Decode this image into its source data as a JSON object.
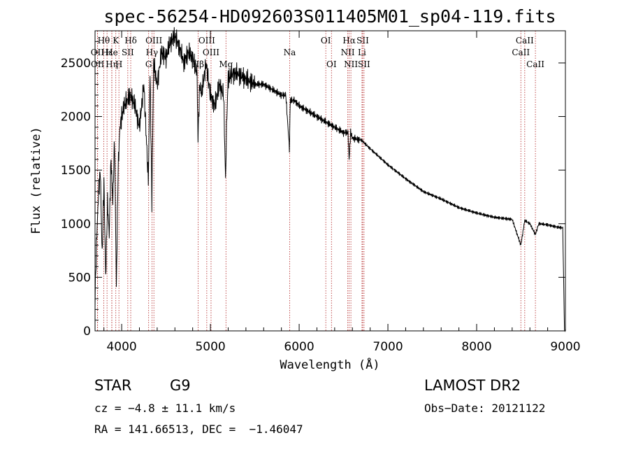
{
  "chart_data": {
    "type": "line",
    "title": "spec-56254-HD092603S011405M01_sp04-119.fits",
    "xlabel": "Wavelength (Å)",
    "ylabel": "Flux (relative)",
    "xlim": [
      3700,
      9000
    ],
    "ylim": [
      0,
      2800
    ],
    "xticks": [
      4000,
      5000,
      6000,
      7000,
      8000,
      9000
    ],
    "yticks": [
      0,
      500,
      1000,
      1500,
      2000,
      2500
    ],
    "grid": false,
    "series": [
      {
        "x": [
          3700,
          3720,
          3740,
          3760,
          3780,
          3800,
          3820,
          3840,
          3860,
          3880,
          3900,
          3920,
          3940,
          3960,
          3980,
          4000,
          4030,
          4060,
          4100,
          4150,
          4200,
          4250,
          4300,
          4320,
          4340,
          4360,
          4400,
          4450,
          4500,
          4550,
          4600,
          4650,
          4700,
          4750,
          4800,
          4850,
          4860,
          4880,
          4900,
          4950,
          5000,
          5050,
          5100,
          5150,
          5170,
          5185,
          5200,
          5250,
          5300,
          5400,
          5500,
          5600,
          5700,
          5800,
          5850,
          5890,
          5900,
          5950,
          6000,
          6100,
          6200,
          6300,
          6400,
          6500,
          6550,
          6563,
          6580,
          6600,
          6700,
          6800,
          7000,
          7200,
          7400,
          7600,
          7800,
          8000,
          8200,
          8400,
          8498,
          8542,
          8600,
          8662,
          8700,
          8800,
          8900,
          8970,
          8990,
          9000
        ],
        "y": [
          300,
          900,
          1300,
          1500,
          700,
          1400,
          500,
          1200,
          900,
          1600,
          1200,
          1800,
          400,
          1500,
          1900,
          2000,
          2100,
          2150,
          2200,
          2100,
          1900,
          2300,
          1400,
          2400,
          1200,
          2500,
          2300,
          2600,
          2550,
          2700,
          2750,
          2650,
          2500,
          2600,
          2550,
          2400,
          1800,
          2300,
          2200,
          2500,
          2200,
          2100,
          2300,
          2200,
          1400,
          2000,
          2350,
          2400,
          2400,
          2350,
          2300,
          2300,
          2250,
          2200,
          2200,
          1700,
          2150,
          2150,
          2100,
          2050,
          2000,
          1950,
          1900,
          1850,
          1850,
          1600,
          1850,
          1800,
          1780,
          1700,
          1550,
          1420,
          1300,
          1230,
          1150,
          1100,
          1060,
          1040,
          800,
          1030,
          1000,
          900,
          1000,
          990,
          970,
          960,
          0,
          0
        ]
      }
    ],
    "line_markers": [
      {
        "label": "Hθ",
        "x": 3798,
        "row": 1
      },
      {
        "label": "OII",
        "x": 3727,
        "row": 2
      },
      {
        "label": "OII",
        "x": 3729,
        "row": 3
      },
      {
        "label": "Hε",
        "x": 3835,
        "row": 2
      },
      {
        "label": "Hη",
        "x": 3889,
        "row": 3
      },
      {
        "label": "K",
        "x": 3934,
        "row": 1
      },
      {
        "label": "H",
        "x": 3969,
        "row": 3
      },
      {
        "label": "He",
        "x": 3889,
        "row": 2
      },
      {
        "label": "SII",
        "x": 4069,
        "row": 2
      },
      {
        "label": "Hδ",
        "x": 4102,
        "row": 1
      },
      {
        "label": "OIII",
        "x": 4363,
        "row": 1
      },
      {
        "label": "Hγ",
        "x": 4341,
        "row": 2
      },
      {
        "label": "G",
        "x": 4304,
        "row": 3
      },
      {
        "label": "OIII",
        "x": 4959,
        "row": 1
      },
      {
        "label": "OIII",
        "x": 5007,
        "row": 2
      },
      {
        "label": "Hβ",
        "x": 4861,
        "row": 3
      },
      {
        "label": "Mg",
        "x": 5175,
        "row": 3
      },
      {
        "label": "Na",
        "x": 5893,
        "row": 2
      },
      {
        "label": "OI",
        "x": 6300,
        "row": 1
      },
      {
        "label": "OI",
        "x": 6364,
        "row": 3
      },
      {
        "label": "Hα",
        "x": 6563,
        "row": 1
      },
      {
        "label": "NII",
        "x": 6548,
        "row": 2
      },
      {
        "label": "NII",
        "x": 6583,
        "row": 3
      },
      {
        "label": "SII",
        "x": 6716,
        "row": 1
      },
      {
        "label": "Li",
        "x": 6708,
        "row": 2
      },
      {
        "label": "SII",
        "x": 6731,
        "row": 3
      },
      {
        "label": "CaII",
        "x": 8542,
        "row": 1
      },
      {
        "label": "CaII",
        "x": 8498,
        "row": 2
      },
      {
        "label": "CaII",
        "x": 8662,
        "row": 3
      }
    ]
  },
  "info": {
    "object": "STAR",
    "subclass": "G9",
    "survey": "LAMOST DR2",
    "cz": "cz = −4.8 ± 11.1 km/s",
    "obsdate": "Obs−Date: 20121122",
    "coords": "RA = 141.66513, DEC =  −1.46047"
  },
  "colors": {
    "spectrum": "#000000",
    "line_marker": "#b22222"
  }
}
